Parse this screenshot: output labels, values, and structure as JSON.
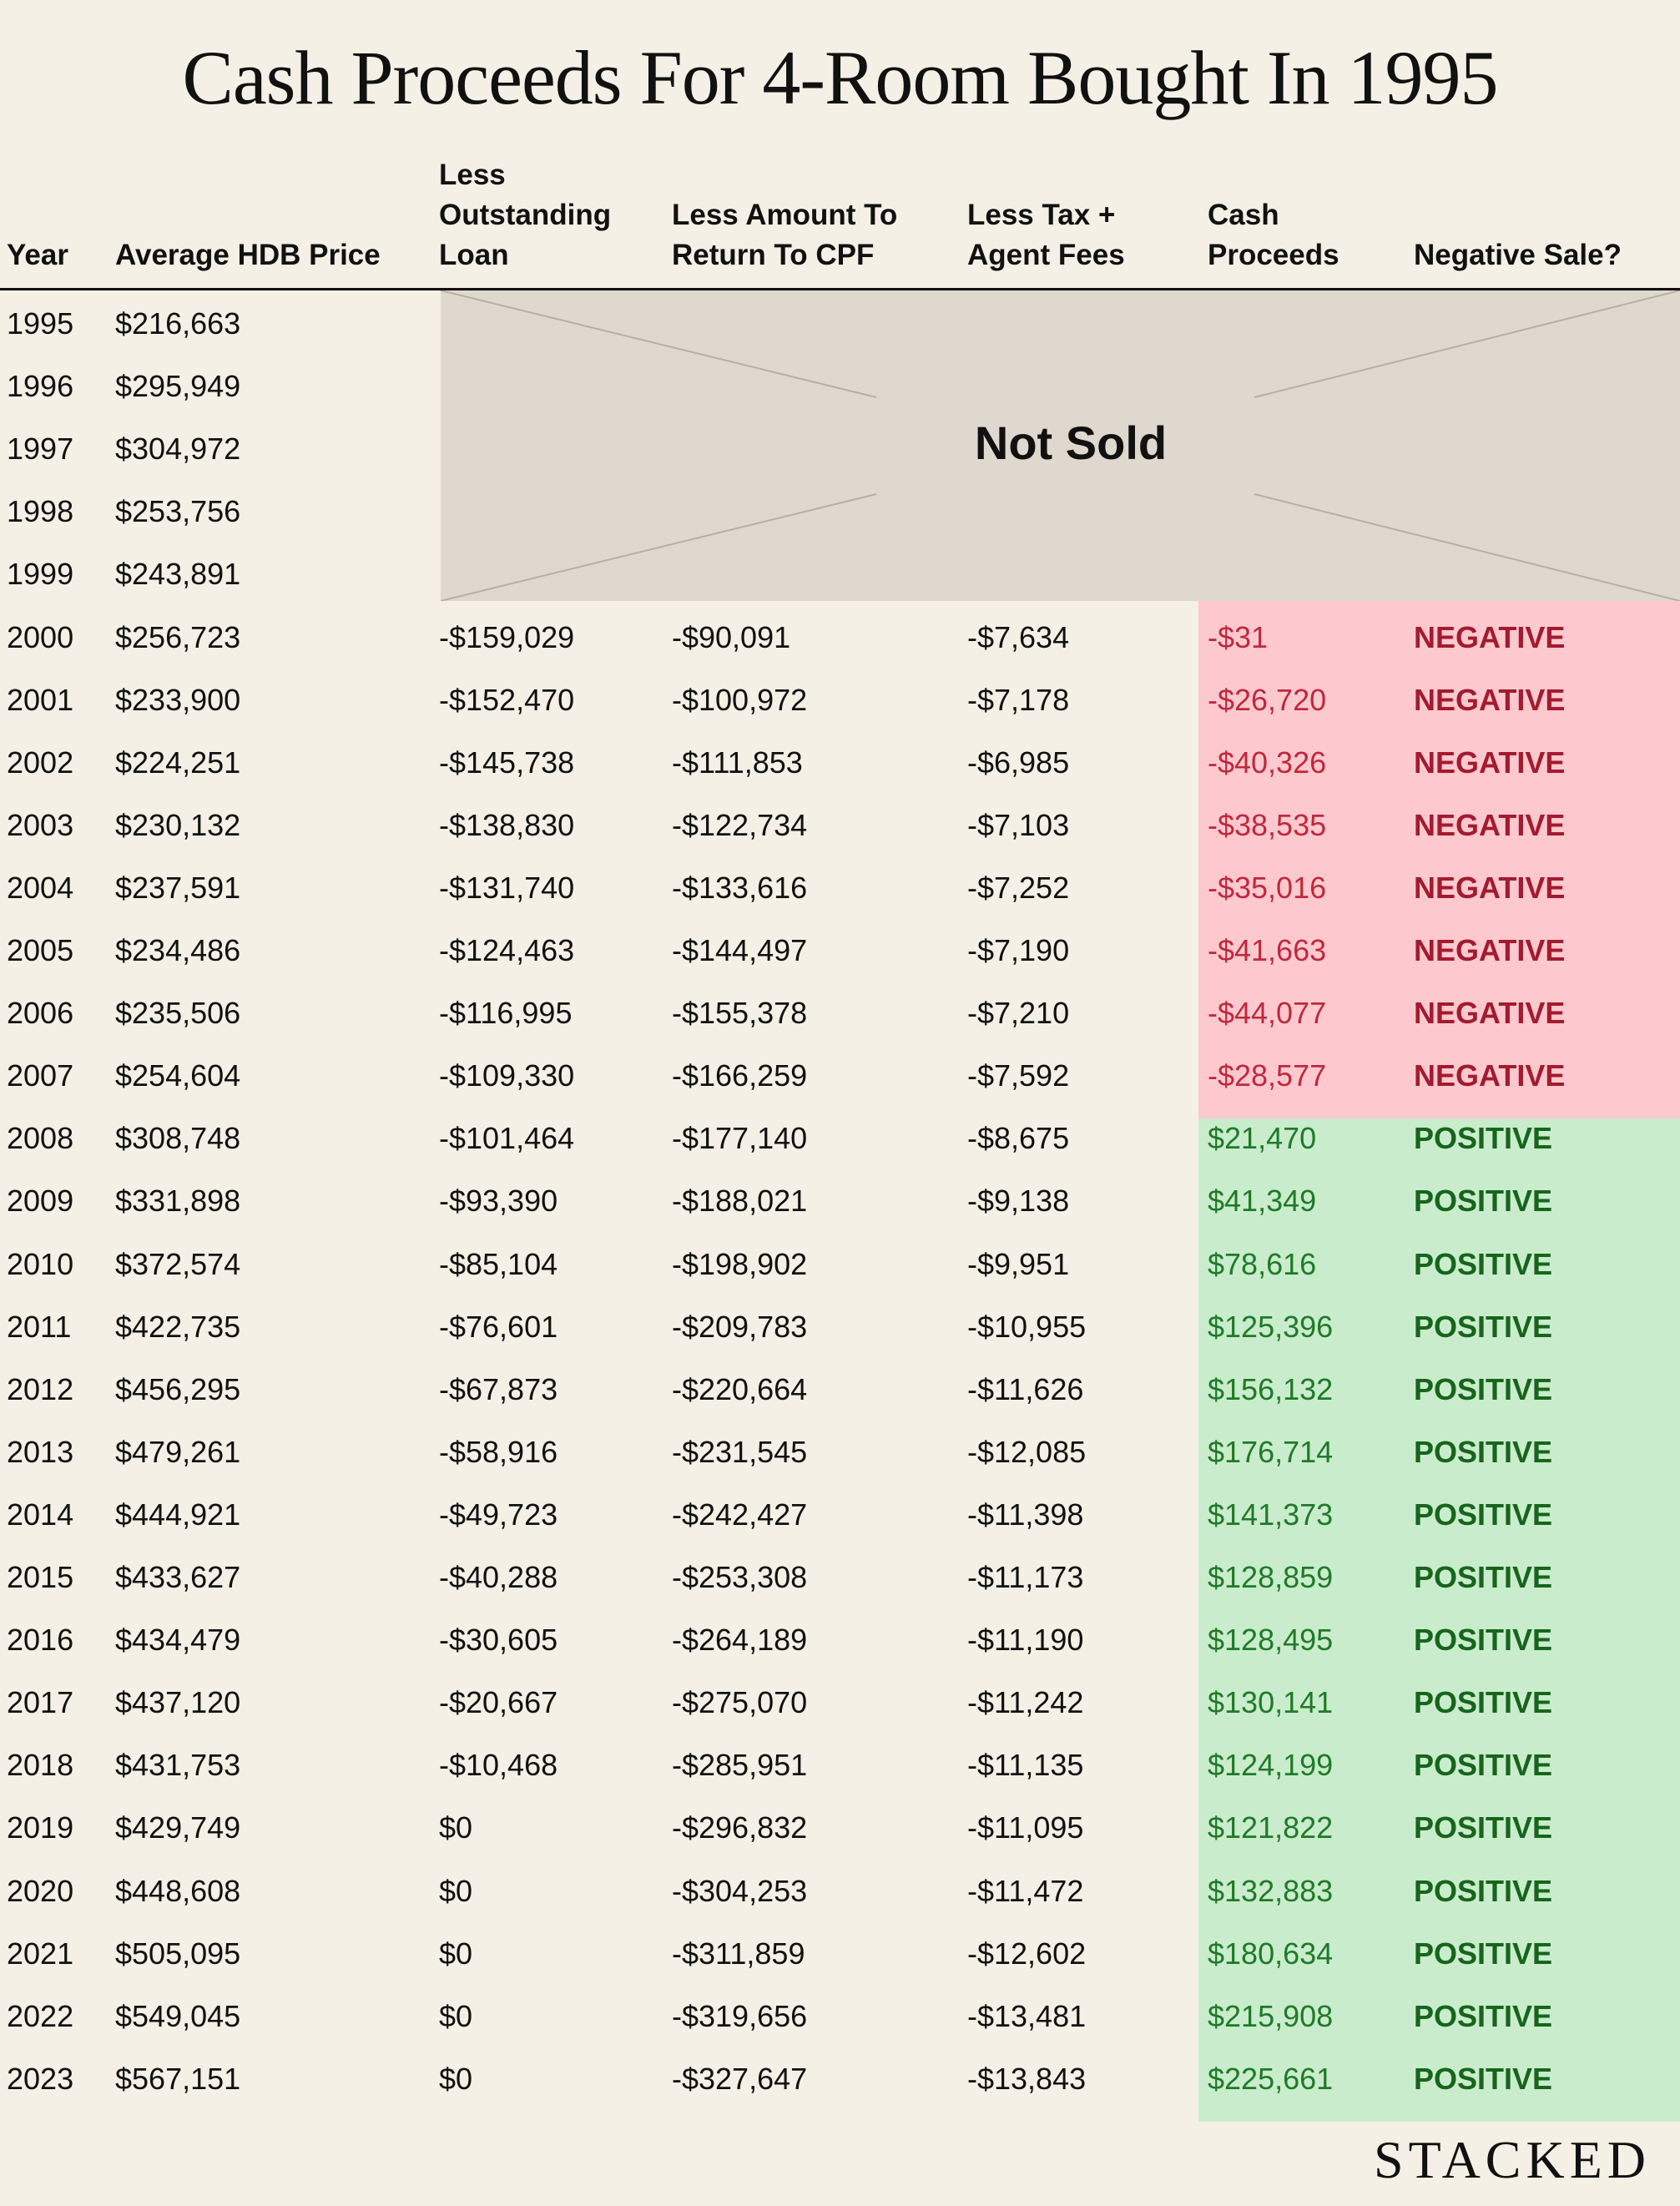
{
  "title": "Cash Proceeds For 4-Room Bought In 1995",
  "brand": "STACKED",
  "not_sold_label": "Not Sold",
  "colors": {
    "negative_band": "#fdc9cf",
    "positive_band": "#c9eccc",
    "not_sold_band": "#dfd8cf",
    "background": "#f4f0e6"
  },
  "chart_data": {
    "type": "table",
    "title": "Cash Proceeds For 4-Room Bought In 1995",
    "columns": [
      [
        "Year"
      ],
      [
        "Average HDB Price"
      ],
      [
        "Less",
        "Outstanding",
        "Loan"
      ],
      [
        "Less Amount To",
        "Return To CPF"
      ],
      [
        "Less Tax +",
        "Agent Fees"
      ],
      [
        "Cash",
        "Proceeds"
      ],
      [
        "Negative Sale?"
      ]
    ],
    "rows": [
      {
        "year": "1995",
        "price": "$216,663",
        "loan": "",
        "cpf": "",
        "fees": "",
        "cash": "",
        "sale": ""
      },
      {
        "year": "1996",
        "price": "$295,949",
        "loan": "",
        "cpf": "",
        "fees": "",
        "cash": "",
        "sale": ""
      },
      {
        "year": "1997",
        "price": "$304,972",
        "loan": "",
        "cpf": "",
        "fees": "",
        "cash": "",
        "sale": ""
      },
      {
        "year": "1998",
        "price": "$253,756",
        "loan": "",
        "cpf": "",
        "fees": "",
        "cash": "",
        "sale": ""
      },
      {
        "year": "1999",
        "price": "$243,891",
        "loan": "",
        "cpf": "",
        "fees": "",
        "cash": "",
        "sale": ""
      },
      {
        "year": "2000",
        "price": "$256,723",
        "loan": "-$159,029",
        "cpf": "-$90,091",
        "fees": "-$7,634",
        "cash": "-$31",
        "sale": "NEGATIVE"
      },
      {
        "year": "2001",
        "price": "$233,900",
        "loan": "-$152,470",
        "cpf": "-$100,972",
        "fees": "-$7,178",
        "cash": "-$26,720",
        "sale": "NEGATIVE"
      },
      {
        "year": "2002",
        "price": "$224,251",
        "loan": "-$145,738",
        "cpf": "-$111,853",
        "fees": "-$6,985",
        "cash": "-$40,326",
        "sale": "NEGATIVE"
      },
      {
        "year": "2003",
        "price": "$230,132",
        "loan": "-$138,830",
        "cpf": "-$122,734",
        "fees": "-$7,103",
        "cash": "-$38,535",
        "sale": "NEGATIVE"
      },
      {
        "year": "2004",
        "price": "$237,591",
        "loan": "-$131,740",
        "cpf": "-$133,616",
        "fees": "-$7,252",
        "cash": "-$35,016",
        "sale": "NEGATIVE"
      },
      {
        "year": "2005",
        "price": "$234,486",
        "loan": "-$124,463",
        "cpf": "-$144,497",
        "fees": "-$7,190",
        "cash": "-$41,663",
        "sale": "NEGATIVE"
      },
      {
        "year": "2006",
        "price": "$235,506",
        "loan": "-$116,995",
        "cpf": "-$155,378",
        "fees": "-$7,210",
        "cash": "-$44,077",
        "sale": "NEGATIVE"
      },
      {
        "year": "2007",
        "price": "$254,604",
        "loan": "-$109,330",
        "cpf": "-$166,259",
        "fees": "-$7,592",
        "cash": "-$28,577",
        "sale": "NEGATIVE"
      },
      {
        "year": "2008",
        "price": "$308,748",
        "loan": "-$101,464",
        "cpf": "-$177,140",
        "fees": "-$8,675",
        "cash": "$21,470",
        "sale": "POSITIVE"
      },
      {
        "year": "2009",
        "price": "$331,898",
        "loan": "-$93,390",
        "cpf": "-$188,021",
        "fees": "-$9,138",
        "cash": "$41,349",
        "sale": "POSITIVE"
      },
      {
        "year": "2010",
        "price": "$372,574",
        "loan": "-$85,104",
        "cpf": "-$198,902",
        "fees": "-$9,951",
        "cash": "$78,616",
        "sale": "POSITIVE"
      },
      {
        "year": "2011",
        "price": "$422,735",
        "loan": "-$76,601",
        "cpf": "-$209,783",
        "fees": "-$10,955",
        "cash": "$125,396",
        "sale": "POSITIVE"
      },
      {
        "year": "2012",
        "price": "$456,295",
        "loan": "-$67,873",
        "cpf": "-$220,664",
        "fees": "-$11,626",
        "cash": "$156,132",
        "sale": "POSITIVE"
      },
      {
        "year": "2013",
        "price": "$479,261",
        "loan": "-$58,916",
        "cpf": "-$231,545",
        "fees": "-$12,085",
        "cash": "$176,714",
        "sale": "POSITIVE"
      },
      {
        "year": "2014",
        "price": "$444,921",
        "loan": "-$49,723",
        "cpf": "-$242,427",
        "fees": "-$11,398",
        "cash": "$141,373",
        "sale": "POSITIVE"
      },
      {
        "year": "2015",
        "price": "$433,627",
        "loan": "-$40,288",
        "cpf": "-$253,308",
        "fees": "-$11,173",
        "cash": "$128,859",
        "sale": "POSITIVE"
      },
      {
        "year": "2016",
        "price": "$434,479",
        "loan": "-$30,605",
        "cpf": "-$264,189",
        "fees": "-$11,190",
        "cash": "$128,495",
        "sale": "POSITIVE"
      },
      {
        "year": "2017",
        "price": "$437,120",
        "loan": "-$20,667",
        "cpf": "-$275,070",
        "fees": "-$11,242",
        "cash": "$130,141",
        "sale": "POSITIVE"
      },
      {
        "year": "2018",
        "price": "$431,753",
        "loan": "-$10,468",
        "cpf": "-$285,951",
        "fees": "-$11,135",
        "cash": "$124,199",
        "sale": "POSITIVE"
      },
      {
        "year": "2019",
        "price": "$429,749",
        "loan": "$0",
        "cpf": "-$296,832",
        "fees": "-$11,095",
        "cash": "$121,822",
        "sale": "POSITIVE"
      },
      {
        "year": "2020",
        "price": "$448,608",
        "loan": "$0",
        "cpf": "-$304,253",
        "fees": "-$11,472",
        "cash": "$132,883",
        "sale": "POSITIVE"
      },
      {
        "year": "2021",
        "price": "$505,095",
        "loan": "$0",
        "cpf": "-$311,859",
        "fees": "-$12,602",
        "cash": "$180,634",
        "sale": "POSITIVE"
      },
      {
        "year": "2022",
        "price": "$549,045",
        "loan": "$0",
        "cpf": "-$319,656",
        "fees": "-$13,481",
        "cash": "$215,908",
        "sale": "POSITIVE"
      },
      {
        "year": "2023",
        "price": "$567,151",
        "loan": "$0",
        "cpf": "-$327,647",
        "fees": "-$13,843",
        "cash": "$225,661",
        "sale": "POSITIVE"
      }
    ]
  }
}
